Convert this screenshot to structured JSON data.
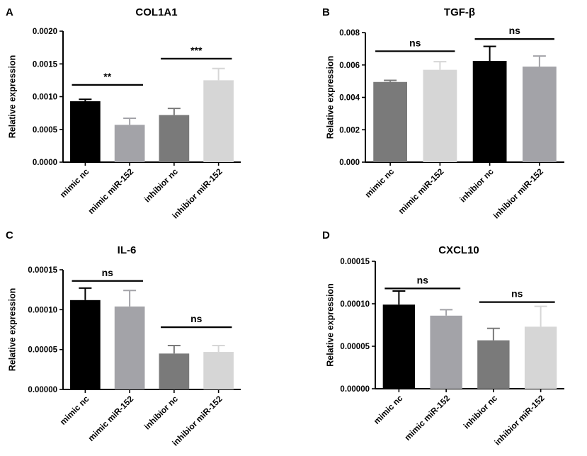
{
  "colors": {
    "black": "#000000",
    "dark_gray": "#7a7a7a",
    "mid_gray": "#a3a3a8",
    "light_gray": "#d6d6d6",
    "axis": "#000000"
  },
  "chart_data": [
    {
      "panel_label": "A",
      "type": "bar",
      "title": "COL1A1",
      "xlabel": "",
      "ylabel": "Relative expression",
      "ylim": [
        0,
        0.002
      ],
      "yticks": [
        "0.0000",
        "0.0005",
        "0.0010",
        "0.0015",
        "0.0020"
      ],
      "ytick_values": [
        0,
        0.0005,
        0.001,
        0.0015,
        0.002
      ],
      "categories": [
        "mimic nc",
        "mimic miR-152",
        "inhibior nc",
        "inhibior miR-152"
      ],
      "values": [
        0.00093,
        0.00057,
        0.00072,
        0.00125
      ],
      "errors": [
        3e-05,
        0.0001,
        0.0001,
        0.00018
      ],
      "bar_colors": [
        "black",
        "mid_gray",
        "dark_gray",
        "light_gray"
      ],
      "annotations": [
        {
          "from": 0,
          "to": 1,
          "y": 0.00118,
          "label": "**"
        },
        {
          "from": 2,
          "to": 3,
          "y": 0.00158,
          "label": "***"
        }
      ]
    },
    {
      "panel_label": "B",
      "type": "bar",
      "title": "TGF-β",
      "xlabel": "",
      "ylabel": "Relative expression",
      "ylim": [
        0,
        0.008
      ],
      "yticks": [
        "0.000",
        "0.002",
        "0.004",
        "0.006",
        "0.008"
      ],
      "ytick_values": [
        0,
        0.002,
        0.004,
        0.006,
        0.008
      ],
      "categories": [
        "mimic nc",
        "mimic miR-152",
        "inhibior nc",
        "inhibior miR-152"
      ],
      "values": [
        0.00495,
        0.0057,
        0.00625,
        0.0059
      ],
      "errors": [
        0.0001,
        0.0005,
        0.0009,
        0.00065
      ],
      "bar_colors": [
        "dark_gray",
        "light_gray",
        "black",
        "mid_gray"
      ],
      "annotations": [
        {
          "from": 0,
          "to": 1,
          "y": 0.00685,
          "label": "ns"
        },
        {
          "from": 2,
          "to": 3,
          "y": 0.0076,
          "label": "ns"
        }
      ]
    },
    {
      "panel_label": "C",
      "type": "bar",
      "title": "IL-6",
      "xlabel": "",
      "ylabel": "Relative expression",
      "ylim": [
        0,
        0.00015
      ],
      "yticks": [
        "0.00000",
        "0.00005",
        "0.00010",
        "0.00015"
      ],
      "ytick_values": [
        0,
        5e-05,
        0.0001,
        0.00015
      ],
      "categories": [
        "mimic nc",
        "mimic miR-152",
        "inhibior nc",
        "inhibior miR-152"
      ],
      "values": [
        0.000112,
        0.000104,
        4.5e-05,
        4.7e-05
      ],
      "errors": [
        1.5e-05,
        2e-05,
        1e-05,
        8e-06
      ],
      "bar_colors": [
        "black",
        "mid_gray",
        "dark_gray",
        "light_gray"
      ],
      "annotations": [
        {
          "from": 0,
          "to": 1,
          "y": 0.000136,
          "label": "ns"
        },
        {
          "from": 2,
          "to": 3,
          "y": 7.8e-05,
          "label": "ns"
        }
      ]
    },
    {
      "panel_label": "D",
      "type": "bar",
      "title": "CXCL10",
      "xlabel": "",
      "ylabel": "Relative expression",
      "ylim": [
        0,
        0.00015
      ],
      "yticks": [
        "0.00000",
        "0.00005",
        "0.00010",
        "0.00015"
      ],
      "ytick_values": [
        0,
        5e-05,
        0.0001,
        0.00015
      ],
      "categories": [
        "mimic nc",
        "mimic miR-152",
        "inhibior nc",
        "inhibior miR-152"
      ],
      "values": [
        9.9e-05,
        8.6e-05,
        5.7e-05,
        7.3e-05
      ],
      "errors": [
        1.6e-05,
        7e-06,
        1.4e-05,
        2.4e-05
      ],
      "bar_colors": [
        "black",
        "mid_gray",
        "dark_gray",
        "light_gray"
      ],
      "annotations": [
        {
          "from": 0,
          "to": 1,
          "y": 0.000118,
          "label": "ns"
        },
        {
          "from": 2,
          "to": 3,
          "y": 0.000102,
          "label": "ns"
        }
      ]
    }
  ]
}
